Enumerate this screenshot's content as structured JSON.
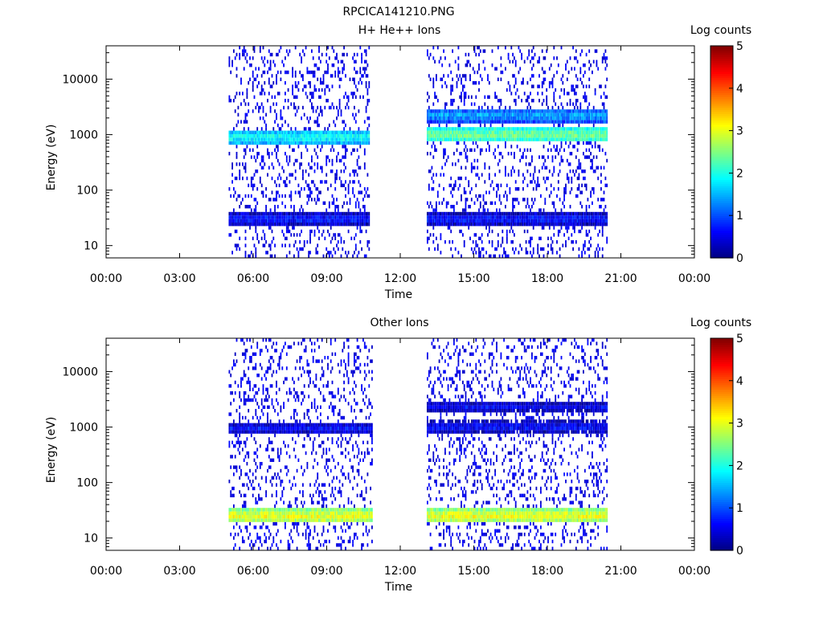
{
  "page_title": "RPCICA141210.PNG",
  "colorbar": {
    "label": "Log counts",
    "min": 0,
    "max": 5,
    "ticks": [
      "0",
      "1",
      "2",
      "3",
      "4",
      "5"
    ],
    "colors": [
      "#000080",
      "#0000ff",
      "#0080ff",
      "#00ffff",
      "#80ff80",
      "#ffff00",
      "#ff8000",
      "#ff0000",
      "#800000"
    ]
  },
  "chart_data": [
    {
      "type": "heatmap",
      "title": "H+ He++ Ions",
      "xlabel": "Time",
      "ylabel": "Energy (eV)",
      "yscale": "log",
      "xlim": [
        "00:00",
        "24:00"
      ],
      "ylim": [
        6,
        40000
      ],
      "x_ticks": [
        "00:00",
        "03:00",
        "06:00",
        "09:00",
        "12:00",
        "15:00",
        "18:00",
        "21:00",
        "00:00"
      ],
      "y_ticks": [
        "10",
        "100",
        "1000",
        "10000"
      ],
      "data_intervals": [
        [
          "05:00",
          "10:45"
        ],
        [
          "13:05",
          "20:25"
        ]
      ],
      "bands": [
        {
          "interval": 0,
          "energy_eV": 900,
          "log_counts": 2.0
        },
        {
          "interval": 1,
          "energy_eV": 1000,
          "log_counts": 2.5
        },
        {
          "interval": 1,
          "energy_eV": 2200,
          "log_counts": 1.5
        },
        {
          "interval": 0,
          "energy_eV": 30,
          "log_counts": 0.8
        },
        {
          "interval": 1,
          "energy_eV": 30,
          "log_counts": 0.8
        }
      ],
      "background_log_counts": 0.3
    },
    {
      "type": "heatmap",
      "title": "Other Ions",
      "xlabel": "Time",
      "ylabel": "Energy (eV)",
      "yscale": "log",
      "xlim": [
        "00:00",
        "24:00"
      ],
      "ylim": [
        6,
        40000
      ],
      "x_ticks": [
        "00:00",
        "03:00",
        "06:00",
        "09:00",
        "12:00",
        "15:00",
        "18:00",
        "21:00",
        "00:00"
      ],
      "y_ticks": [
        "10",
        "100",
        "1000",
        "10000"
      ],
      "data_intervals": [
        [
          "05:00",
          "10:50"
        ],
        [
          "13:05",
          "20:25"
        ]
      ],
      "bands": [
        {
          "interval": 0,
          "energy_eV": 25,
          "log_counts": 3.1
        },
        {
          "interval": 1,
          "energy_eV": 25,
          "log_counts": 3.1
        },
        {
          "interval": 1,
          "energy_eV": 1000,
          "log_counts": 0.7
        },
        {
          "interval": 1,
          "energy_eV": 2300,
          "log_counts": 0.6
        },
        {
          "interval": 0,
          "energy_eV": 950,
          "log_counts": 0.7
        }
      ],
      "background_log_counts": 0.3
    }
  ]
}
